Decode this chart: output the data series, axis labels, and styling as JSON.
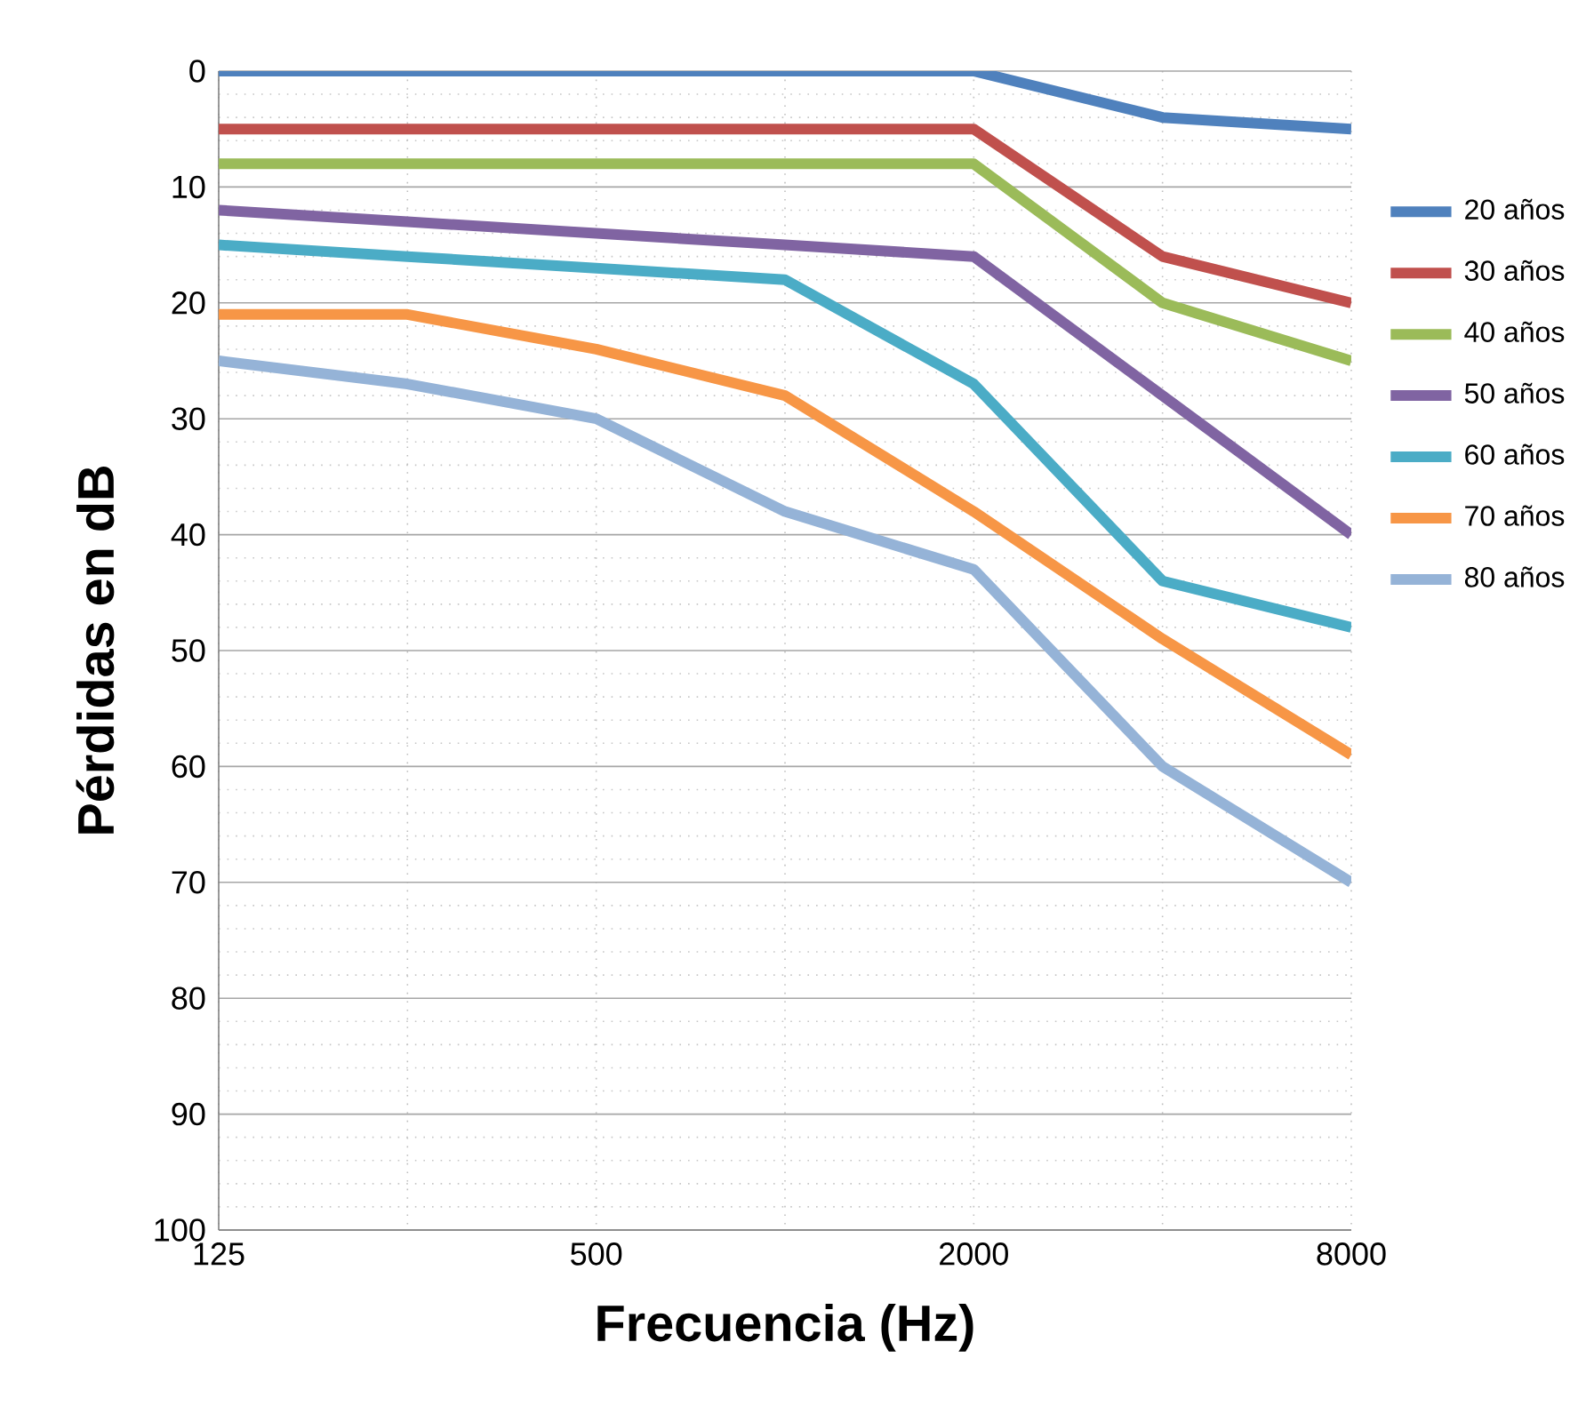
{
  "chart_data": {
    "type": "line",
    "xlabel": "Frecuencia (Hz)",
    "ylabel": "Pérdidas  en dB",
    "categories": [
      "125",
      null,
      "500",
      null,
      "2000",
      null,
      "8000"
    ],
    "ylim": [
      100,
      0
    ],
    "yticks": [
      0,
      10,
      20,
      30,
      40,
      50,
      60,
      70,
      80,
      90,
      100
    ],
    "grid": true,
    "legend": "right",
    "marker": "none",
    "line_style": "solid",
    "series": [
      {
        "name": "20 años",
        "color": "#4f81bd",
        "values": [
          0,
          0,
          0,
          0,
          0,
          4,
          5
        ]
      },
      {
        "name": "30 años",
        "color": "#c0504d",
        "values": [
          5,
          5,
          5,
          5,
          5,
          16,
          20
        ]
      },
      {
        "name": "40 años",
        "color": "#9bbb59",
        "values": [
          8,
          8,
          8,
          8,
          8,
          20,
          25
        ]
      },
      {
        "name": "50 años",
        "color": "#8064a2",
        "values": [
          12,
          13,
          14,
          15,
          16,
          28,
          40
        ]
      },
      {
        "name": "60 años",
        "color": "#4bacc6",
        "values": [
          15,
          16,
          17,
          18,
          27,
          44,
          48
        ]
      },
      {
        "name": "70 años",
        "color": "#f79646",
        "values": [
          21,
          21,
          24,
          28,
          38,
          49,
          59
        ]
      },
      {
        "name": "80 años",
        "color": "#95b3d7",
        "values": [
          25,
          27,
          30,
          38,
          43,
          60,
          70
        ]
      }
    ]
  }
}
